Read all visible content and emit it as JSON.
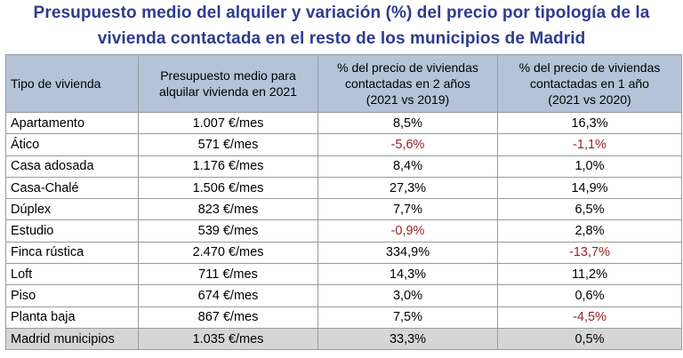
{
  "title_line1": "Presupuesto medio del alquiler y variación (%) del precio por tipología de la",
  "title_line2": "vivienda contactada en el resto de los municipios de Madrid",
  "headers": {
    "col1": "Tipo de vivienda",
    "col2_l1": "Presupuesto medio para",
    "col2_l2": "alquilar vivienda en 2021",
    "col3_l1": "% del precio de viviendas",
    "col3_l2": "contactadas en 2 años",
    "col3_l3": "(2021 vs 2019)",
    "col4_l1": "% del precio de viviendas",
    "col4_l2": "contactadas en 1 año",
    "col4_l3": "(2021 vs 2020)"
  },
  "rows": [
    {
      "tipo": "Apartamento",
      "presupuesto": "1.007 €/mes",
      "var2": "8,5%",
      "var1": "16,3%"
    },
    {
      "tipo": "Ático",
      "presupuesto": "571 €/mes",
      "var2": "-5,6%",
      "var1": "-1,1%"
    },
    {
      "tipo": "Casa adosada",
      "presupuesto": "1.176 €/mes",
      "var2": "8,4%",
      "var1": "1,0%"
    },
    {
      "tipo": "Casa-Chalé",
      "presupuesto": "1.506 €/mes",
      "var2": "27,3%",
      "var1": "14,9%"
    },
    {
      "tipo": "Dúplex",
      "presupuesto": "823 €/mes",
      "var2": "7,7%",
      "var1": "6,5%"
    },
    {
      "tipo": "Estudio",
      "presupuesto": "539 €/mes",
      "var2": "-0,9%",
      "var1": "2,8%"
    },
    {
      "tipo": "Finca rústica",
      "presupuesto": "2.470 €/mes",
      "var2": "334,9%",
      "var1": "-13,7%"
    },
    {
      "tipo": "Loft",
      "presupuesto": "711 €/mes",
      "var2": "14,3%",
      "var1": "11,2%"
    },
    {
      "tipo": "Piso",
      "presupuesto": "674 €/mes",
      "var2": "3,0%",
      "var1": "0,6%"
    },
    {
      "tipo": "Planta baja",
      "presupuesto": "867 €/mes",
      "var2": "7,5%",
      "var1": "-4,5%"
    }
  ],
  "total": {
    "tipo": "Madrid municipios",
    "presupuesto": "1.035 €/mes",
    "var2": "33,3%",
    "var1": "0,5%"
  },
  "colors": {
    "title": "#2f3b8f",
    "header_bg": "#b4c3d8",
    "negative": "#9b2226",
    "total_bg": "#d6d6d6"
  }
}
